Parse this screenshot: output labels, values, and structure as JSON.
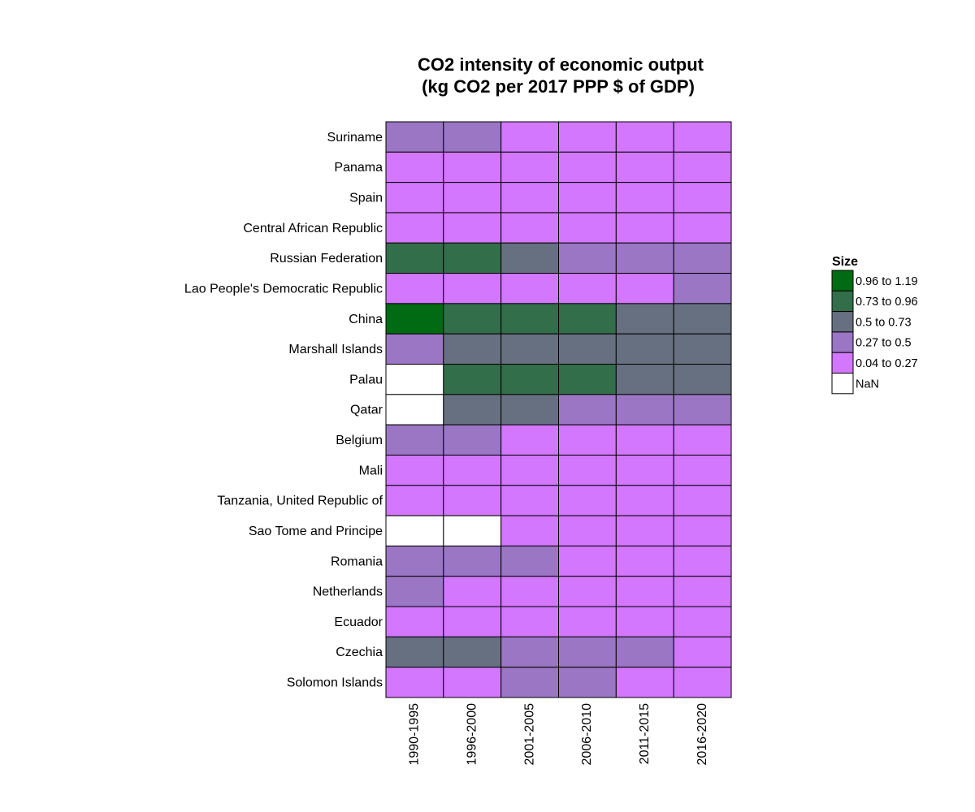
{
  "chart_data": {
    "type": "heatmap",
    "title": [
      "CO2 intensity of economic output",
      "(kg CO2 per 2017 PPP $ of GDP)"
    ],
    "rows": [
      "Suriname",
      "Panama",
      "Spain",
      "Central African Republic",
      "Russian Federation",
      "Lao People's Democratic Republic",
      "China",
      "Marshall Islands",
      "Palau",
      "Qatar",
      "Belgium",
      "Mali",
      "Tanzania, United Republic of",
      "Sao Tome and Principe",
      "Romania",
      "Netherlands",
      "Ecuador",
      "Czechia",
      "Solomon Islands"
    ],
    "columns": [
      "1990-1995",
      "1996-2000",
      "2001-2005",
      "2006-2010",
      "2011-2015",
      "2016-2020"
    ],
    "legend": {
      "title": "Size",
      "entries": [
        {
          "label": "0.96 to 1.19",
          "color": "#006b12"
        },
        {
          "label": "0.73 to 0.96",
          "color": "#336e4a"
        },
        {
          "label": "0.5 to 0.73",
          "color": "#667080"
        },
        {
          "label": "0.27 to 0.5",
          "color": "#9b76c4"
        },
        {
          "label": "0.04 to 0.27",
          "color": "#d277fe"
        },
        {
          "label": "NaN",
          "color": "#ffffff"
        }
      ]
    },
    "cells": [
      [
        "0.27 to 0.5",
        "0.27 to 0.5",
        "0.04 to 0.27",
        "0.04 to 0.27",
        "0.04 to 0.27",
        "0.04 to 0.27"
      ],
      [
        "0.04 to 0.27",
        "0.04 to 0.27",
        "0.04 to 0.27",
        "0.04 to 0.27",
        "0.04 to 0.27",
        "0.04 to 0.27"
      ],
      [
        "0.04 to 0.27",
        "0.04 to 0.27",
        "0.04 to 0.27",
        "0.04 to 0.27",
        "0.04 to 0.27",
        "0.04 to 0.27"
      ],
      [
        "0.04 to 0.27",
        "0.04 to 0.27",
        "0.04 to 0.27",
        "0.04 to 0.27",
        "0.04 to 0.27",
        "0.04 to 0.27"
      ],
      [
        "0.73 to 0.96",
        "0.73 to 0.96",
        "0.5 to 0.73",
        "0.27 to 0.5",
        "0.27 to 0.5",
        "0.27 to 0.5"
      ],
      [
        "0.04 to 0.27",
        "0.04 to 0.27",
        "0.04 to 0.27",
        "0.04 to 0.27",
        "0.04 to 0.27",
        "0.27 to 0.5"
      ],
      [
        "0.96 to 1.19",
        "0.73 to 0.96",
        "0.73 to 0.96",
        "0.73 to 0.96",
        "0.5 to 0.73",
        "0.5 to 0.73"
      ],
      [
        "0.27 to 0.5",
        "0.5 to 0.73",
        "0.5 to 0.73",
        "0.5 to 0.73",
        "0.5 to 0.73",
        "0.5 to 0.73"
      ],
      [
        "NaN",
        "0.73 to 0.96",
        "0.73 to 0.96",
        "0.73 to 0.96",
        "0.5 to 0.73",
        "0.5 to 0.73"
      ],
      [
        "NaN",
        "0.5 to 0.73",
        "0.5 to 0.73",
        "0.27 to 0.5",
        "0.27 to 0.5",
        "0.27 to 0.5"
      ],
      [
        "0.27 to 0.5",
        "0.27 to 0.5",
        "0.04 to 0.27",
        "0.04 to 0.27",
        "0.04 to 0.27",
        "0.04 to 0.27"
      ],
      [
        "0.04 to 0.27",
        "0.04 to 0.27",
        "0.04 to 0.27",
        "0.04 to 0.27",
        "0.04 to 0.27",
        "0.04 to 0.27"
      ],
      [
        "0.04 to 0.27",
        "0.04 to 0.27",
        "0.04 to 0.27",
        "0.04 to 0.27",
        "0.04 to 0.27",
        "0.04 to 0.27"
      ],
      [
        "NaN",
        "NaN",
        "0.04 to 0.27",
        "0.04 to 0.27",
        "0.04 to 0.27",
        "0.04 to 0.27"
      ],
      [
        "0.27 to 0.5",
        "0.27 to 0.5",
        "0.27 to 0.5",
        "0.04 to 0.27",
        "0.04 to 0.27",
        "0.04 to 0.27"
      ],
      [
        "0.27 to 0.5",
        "0.04 to 0.27",
        "0.04 to 0.27",
        "0.04 to 0.27",
        "0.04 to 0.27",
        "0.04 to 0.27"
      ],
      [
        "0.04 to 0.27",
        "0.04 to 0.27",
        "0.04 to 0.27",
        "0.04 to 0.27",
        "0.04 to 0.27",
        "0.04 to 0.27"
      ],
      [
        "0.5 to 0.73",
        "0.5 to 0.73",
        "0.27 to 0.5",
        "0.27 to 0.5",
        "0.27 to 0.5",
        "0.04 to 0.27"
      ],
      [
        "0.04 to 0.27",
        "0.04 to 0.27",
        "0.27 to 0.5",
        "0.27 to 0.5",
        "0.04 to 0.27",
        "0.04 to 0.27"
      ]
    ]
  }
}
